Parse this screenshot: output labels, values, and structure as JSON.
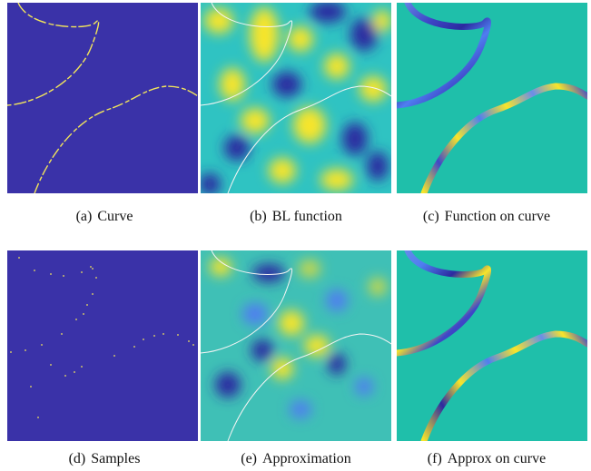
{
  "figure": {
    "colors": {
      "background_dark": "#3a32a8",
      "background_teal": "#1fbfaa",
      "curve_yellow": "#f2e55b",
      "field_yellow": "#f7e52a",
      "field_blue": "#2c2aa0",
      "field_cyan": "#2fc3c2"
    },
    "panels": [
      {
        "label": "(a)",
        "title": "Curve"
      },
      {
        "label": "(b)",
        "title": "BL function"
      },
      {
        "label": "(c)",
        "title": "Function on curve"
      },
      {
        "label": "(d)",
        "title": "Samples"
      },
      {
        "label": "(e)",
        "title": "Approximation"
      },
      {
        "label": "(f)",
        "title": "Approx on curve"
      }
    ]
  }
}
